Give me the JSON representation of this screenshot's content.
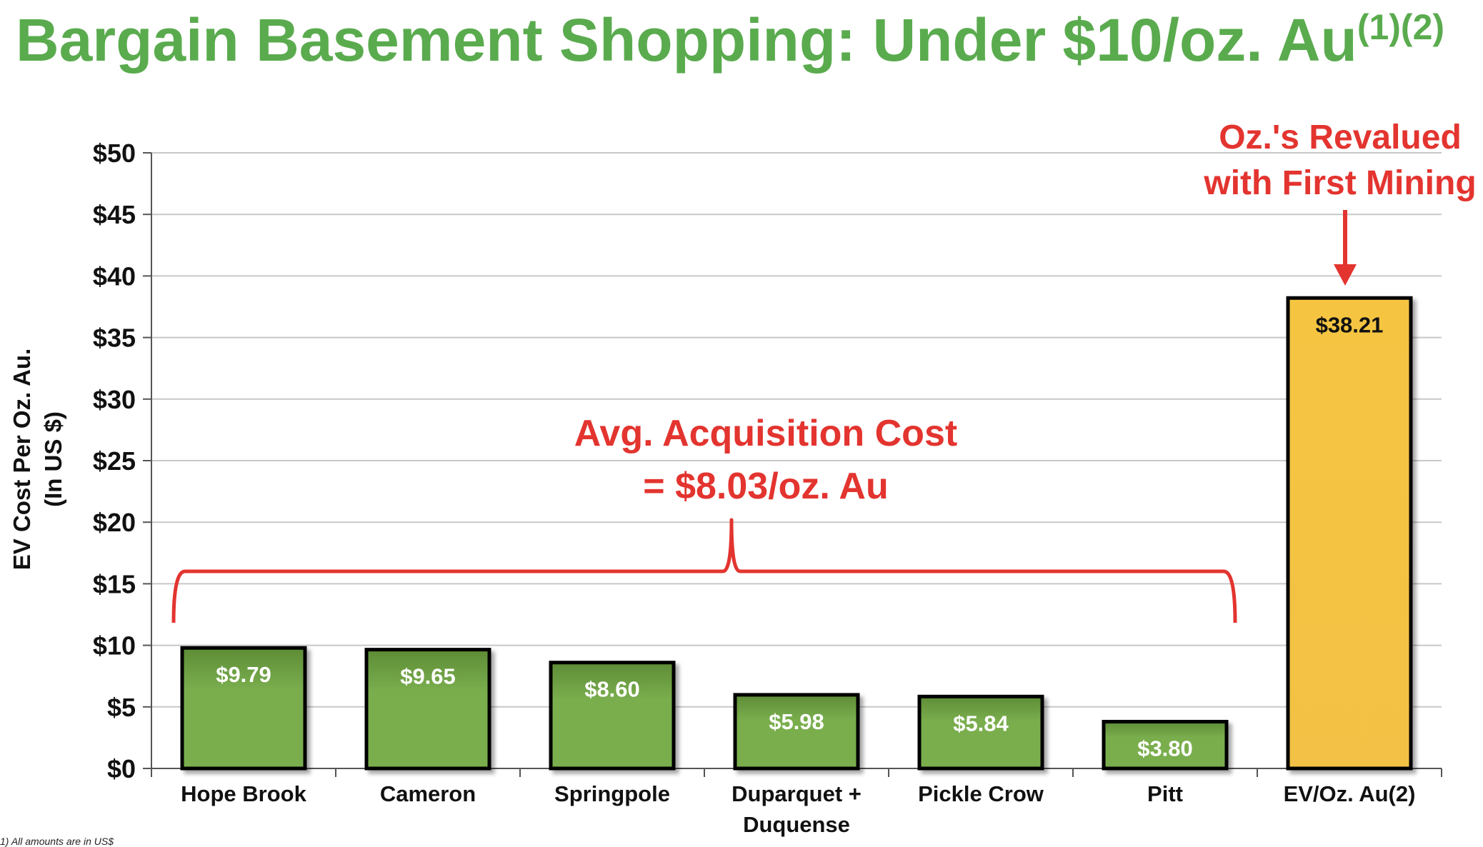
{
  "title": {
    "main": "Bargain Basement Shopping: Under $10/oz. Au",
    "superscript": "(1)(2)"
  },
  "footnote": "1)  All amounts are in US$",
  "colors": {
    "title": "#5aab4e",
    "annotation": "#e3342f",
    "green_bar": "#77a94c",
    "gold_bar": "#f3c144",
    "grid": "#c8c8c8"
  },
  "chart_data": {
    "type": "bar",
    "categories": [
      "Hope Brook",
      "Cameron",
      "Springpole",
      "Duparquet + Duquense",
      "Pickle Crow",
      "Pitt",
      "EV/Oz. Au(2)"
    ],
    "category_lines": [
      [
        "Hope Brook"
      ],
      [
        "Cameron"
      ],
      [
        "Springpole"
      ],
      [
        "Duparquet +",
        "Duquense"
      ],
      [
        "Pickle Crow"
      ],
      [
        "Pitt"
      ],
      [
        "EV/Oz. Au(2)"
      ]
    ],
    "values": [
      9.79,
      9.65,
      8.6,
      5.98,
      5.84,
      3.8,
      38.21
    ],
    "data_labels": [
      "$9.79",
      "$9.65",
      "$8.60",
      "$5.98",
      "$5.84",
      "$3.80",
      "$38.21"
    ],
    "bar_colors": [
      "green",
      "green",
      "green",
      "green",
      "green",
      "green",
      "gold"
    ],
    "ylabel_lines": [
      "EV Cost Per Oz. Au.",
      "(In US $)"
    ],
    "ylim": [
      0,
      50
    ],
    "yticks": [
      0,
      5,
      10,
      15,
      20,
      25,
      30,
      35,
      40,
      45,
      50
    ],
    "ytick_labels": [
      "$0",
      "$5",
      "$10",
      "$15",
      "$20",
      "$25",
      "$30",
      "$35",
      "$40",
      "$45",
      "$50"
    ],
    "grid": true,
    "annotations": {
      "average": {
        "lines": [
          "Avg. Acquisition Cost",
          "= $8.03/oz. Au"
        ],
        "spans_categories": [
          0,
          5
        ]
      },
      "revalued": {
        "lines": [
          "Oz.'s Revalued",
          "with First Mining"
        ],
        "points_to_category": 6
      }
    }
  }
}
